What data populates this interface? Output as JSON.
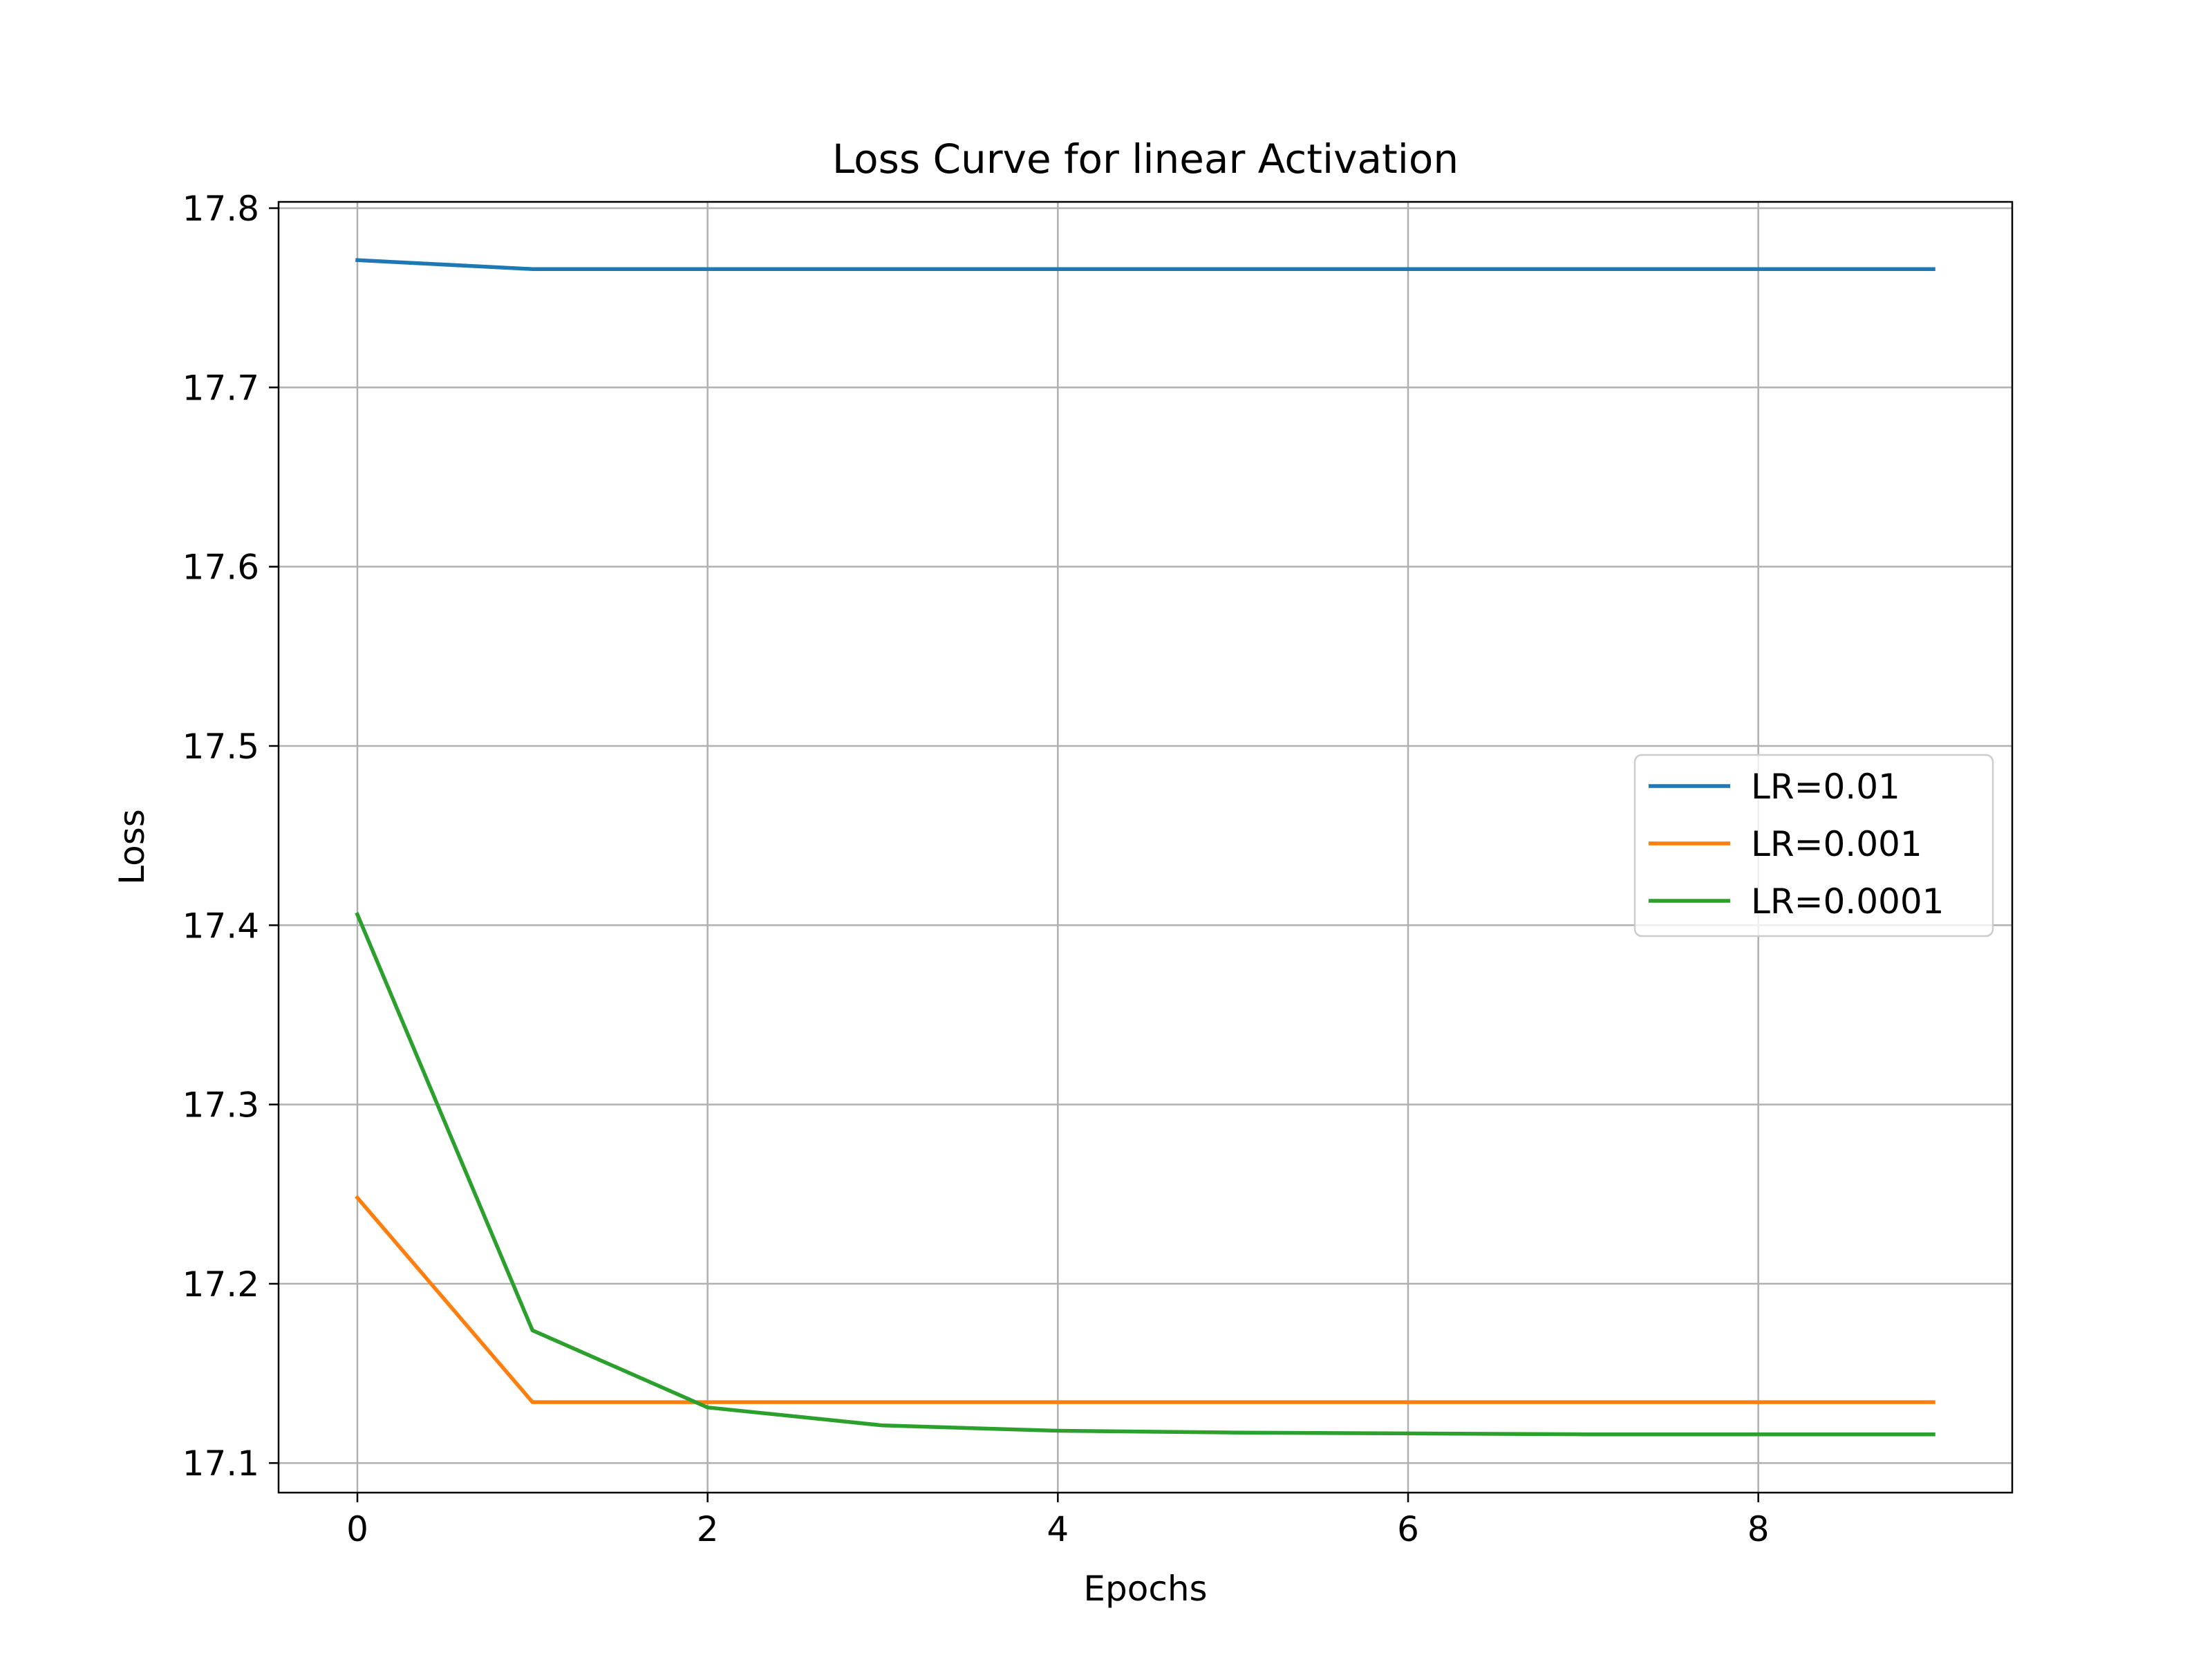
{
  "chart_data": {
    "type": "line",
    "title": "Loss Curve for linear Activation",
    "xlabel": "Epochs",
    "ylabel": "Loss",
    "xlim": [
      -0.45,
      9.45
    ],
    "ylim": [
      17.0835,
      17.8035
    ],
    "xticks": [
      0,
      2,
      4,
      6,
      8
    ],
    "yticks": [
      17.1,
      17.2,
      17.3,
      17.4,
      17.5,
      17.6,
      17.7,
      17.8
    ],
    "xtick_labels": [
      "0",
      "2",
      "4",
      "6",
      "8"
    ],
    "ytick_labels": [
      "17.1",
      "17.2",
      "17.3",
      "17.4",
      "17.5",
      "17.6",
      "17.7",
      "17.8"
    ],
    "grid": true,
    "legend_position": "center-right",
    "x": [
      0,
      1,
      2,
      3,
      4,
      5,
      6,
      7,
      8,
      9
    ],
    "series": [
      {
        "name": "LR=0.01",
        "color": "#1f77b4",
        "values": [
          17.771,
          17.766,
          17.766,
          17.766,
          17.766,
          17.766,
          17.766,
          17.766,
          17.766,
          17.766
        ]
      },
      {
        "name": "LR=0.001",
        "color": "#ff7f0e",
        "values": [
          17.248,
          17.134,
          17.134,
          17.134,
          17.134,
          17.134,
          17.134,
          17.134,
          17.134,
          17.134
        ]
      },
      {
        "name": "LR=0.0001",
        "color": "#2ca02c",
        "values": [
          17.406,
          17.174,
          17.131,
          17.121,
          17.118,
          17.117,
          17.1165,
          17.116,
          17.116,
          17.116
        ]
      }
    ]
  }
}
